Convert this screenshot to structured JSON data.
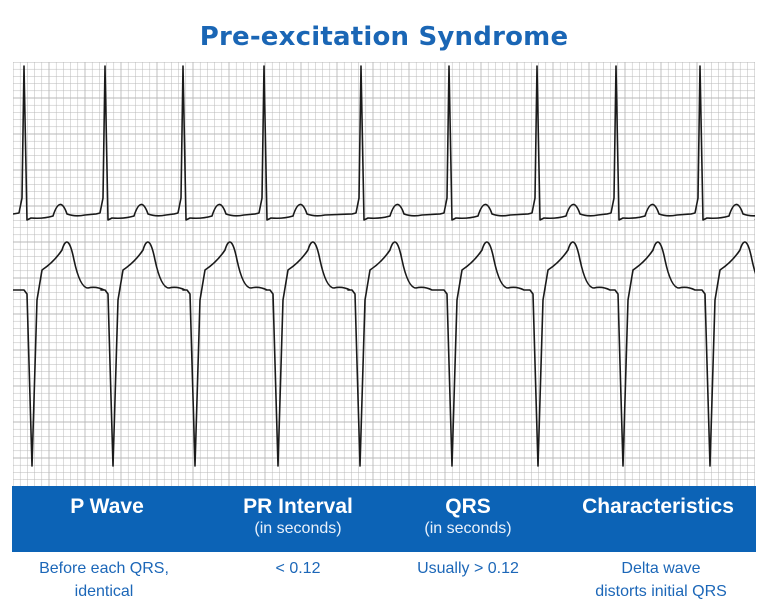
{
  "title": "Pre-excitation Syndrome",
  "table": {
    "headers": [
      {
        "label": "P Wave",
        "sub": ""
      },
      {
        "label": "PR Interval",
        "sub": "(in seconds)"
      },
      {
        "label": "QRS",
        "sub": "(in seconds)"
      },
      {
        "label": "Characteristics",
        "sub": ""
      }
    ],
    "values": [
      {
        "line1": "Before each QRS,",
        "line2": "identical"
      },
      {
        "line1": "< 0.12",
        "line2": ""
      },
      {
        "line1": "Usually > 0.12",
        "line2": ""
      },
      {
        "line1": "Delta wave",
        "line2": "distorts initial QRS"
      }
    ]
  },
  "colors": {
    "title": "#1a66b5",
    "header_band": "#0c63b6",
    "value_text": "#1c67b8",
    "grid": "#b9b9b9",
    "trace": "#1a1a1a"
  }
}
